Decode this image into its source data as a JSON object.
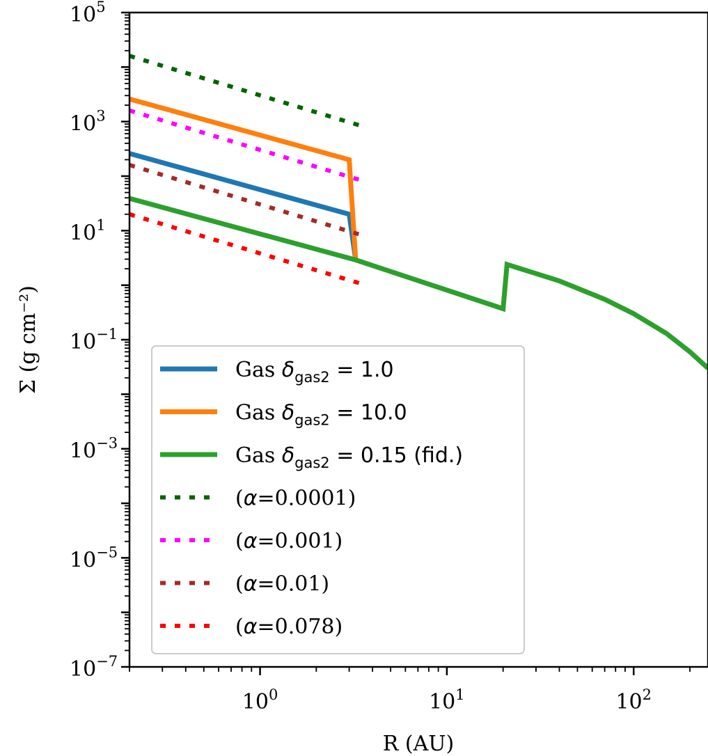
{
  "chart_data": {
    "type": "line",
    "xscale": "log",
    "yscale": "log",
    "xlabel": "R (AU)",
    "ylabel": "Σ (g cm⁻²)",
    "xlim": [
      0.2,
      250
    ],
    "ylim": [
      1e-07,
      100000.0
    ],
    "x_ticks": [
      {
        "base": "10",
        "exp": "0",
        "value": 1
      },
      {
        "base": "10",
        "exp": "1",
        "value": 10
      },
      {
        "base": "10",
        "exp": "2",
        "value": 100
      }
    ],
    "y_ticks": [
      {
        "base": "10",
        "exp": "5",
        "value": 100000
      },
      {
        "base": "10",
        "exp": "3",
        "value": 1000
      },
      {
        "base": "10",
        "exp": "1",
        "value": 10
      },
      {
        "base": "10",
        "exp": "−1",
        "value": 0.1
      },
      {
        "base": "10",
        "exp": "−3",
        "value": 0.001
      },
      {
        "base": "10",
        "exp": "−5",
        "value": 1e-05
      },
      {
        "base": "10",
        "exp": "−7",
        "value": 1e-07
      }
    ],
    "grid": false,
    "legend_position": "lower-left",
    "series": [
      {
        "name": "Gas δgas2 = 1.0",
        "legend_prefix": "Gas ",
        "legend_symbol": "δ",
        "legend_sub": "gas2",
        "legend_suffix": " = 1.0",
        "color": "#1f77b4",
        "style": "solid",
        "x": [
          0.2,
          3.0,
          3.25
        ],
        "y": [
          260,
          20,
          2.9
        ]
      },
      {
        "name": "Gas δgas2 = 10.0",
        "legend_prefix": "Gas ",
        "legend_symbol": "δ",
        "legend_sub": "gas2",
        "legend_suffix": " = 10.0",
        "color": "#ff7f0e",
        "style": "solid",
        "x": [
          0.2,
          3.0,
          3.25
        ],
        "y": [
          2600,
          200,
          2.9
        ]
      },
      {
        "name": "Gas δgas2 = 0.15 (fid.)",
        "legend_prefix": "Gas ",
        "legend_symbol": "δ",
        "legend_sub": "gas2",
        "legend_suffix": " = 0.15 (fid.)",
        "color": "#2ca02c",
        "style": "solid",
        "x": [
          0.2,
          3.25,
          20,
          21,
          40,
          70,
          100,
          150,
          200,
          250
        ],
        "y": [
          39,
          2.9,
          0.37,
          2.4,
          1.2,
          0.55,
          0.3,
          0.13,
          0.06,
          0.03
        ]
      },
      {
        "name": "(α=0.0001)",
        "legend_prefix": "(",
        "legend_symbol": "α",
        "legend_sub": "",
        "legend_suffix": "=0.0001)",
        "color": "#006400",
        "style": "dotted",
        "x": [
          0.2,
          3.5
        ],
        "y": [
          16000,
          830
        ]
      },
      {
        "name": "(α=0.001)",
        "legend_prefix": "(",
        "legend_symbol": "α",
        "legend_sub": "",
        "legend_suffix": "=0.001)",
        "color": "#ff00ff",
        "style": "dotted",
        "x": [
          0.2,
          3.5
        ],
        "y": [
          1600,
          83
        ]
      },
      {
        "name": "(α=0.01)",
        "legend_prefix": "(",
        "legend_symbol": "α",
        "legend_sub": "",
        "legend_suffix": "=0.01)",
        "color": "#a52a2a",
        "style": "dotted",
        "x": [
          0.2,
          3.5
        ],
        "y": [
          160,
          8.3
        ]
      },
      {
        "name": "(α=0.078)",
        "legend_prefix": "(",
        "legend_symbol": "α",
        "legend_sub": "",
        "legend_suffix": "=0.078)",
        "color": "#ff0000",
        "style": "dotted",
        "x": [
          0.2,
          3.5
        ],
        "y": [
          20,
          1.06
        ]
      }
    ]
  }
}
